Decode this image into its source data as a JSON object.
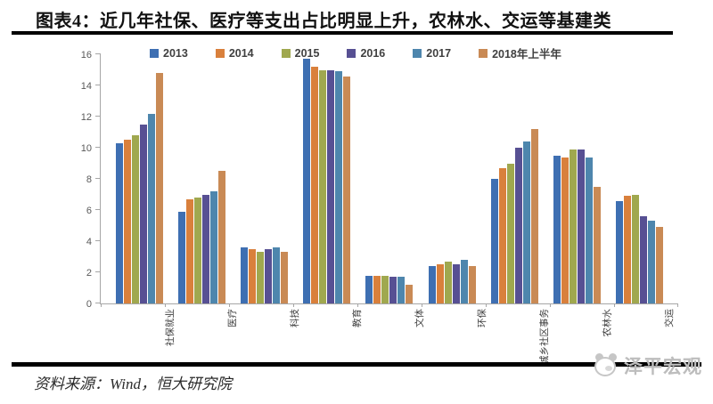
{
  "title": "图表4：近几年社保、医疗等支出占比明显上升，农林水、交运等基建类",
  "source": "资料来源：Wind，恒大研究院",
  "logo_text": "泽平宏观",
  "chart_data": {
    "type": "bar",
    "title": "图表4：近几年社保、医疗等支出占比明显上升，农林水、交运等基建类",
    "categories": [
      "社保就业",
      "医疗",
      "科技",
      "教育",
      "文体",
      "环保",
      "城乡社区事务",
      "农林水",
      "交运"
    ],
    "series": [
      {
        "name": "2013",
        "color": "#3E6FB2",
        "values": [
          10.3,
          5.9,
          3.6,
          15.7,
          1.8,
          2.4,
          8.0,
          9.5,
          6.6
        ]
      },
      {
        "name": "2014",
        "color": "#D9803C",
        "values": [
          10.5,
          6.7,
          3.5,
          15.2,
          1.8,
          2.5,
          8.7,
          9.4,
          6.9
        ]
      },
      {
        "name": "2015",
        "color": "#A0A84F",
        "values": [
          10.8,
          6.8,
          3.3,
          15.0,
          1.8,
          2.7,
          9.0,
          9.9,
          7.0
        ]
      },
      {
        "name": "2016",
        "color": "#575093",
        "values": [
          11.5,
          7.0,
          3.5,
          15.0,
          1.7,
          2.5,
          10.0,
          9.9,
          5.6
        ]
      },
      {
        "name": "2017",
        "color": "#4E86AD",
        "values": [
          12.2,
          7.2,
          3.6,
          14.9,
          1.7,
          2.8,
          10.4,
          9.4,
          5.3
        ]
      },
      {
        "name": "2018年上半年",
        "color": "#C98A55",
        "values": [
          14.8,
          8.5,
          3.3,
          14.6,
          1.2,
          2.4,
          11.2,
          7.5,
          4.9
        ]
      }
    ],
    "ylabel": "",
    "xlabel": "",
    "ylim": [
      0,
      16
    ],
    "ytick_step": 2,
    "grid": false,
    "legend_position": "top"
  }
}
